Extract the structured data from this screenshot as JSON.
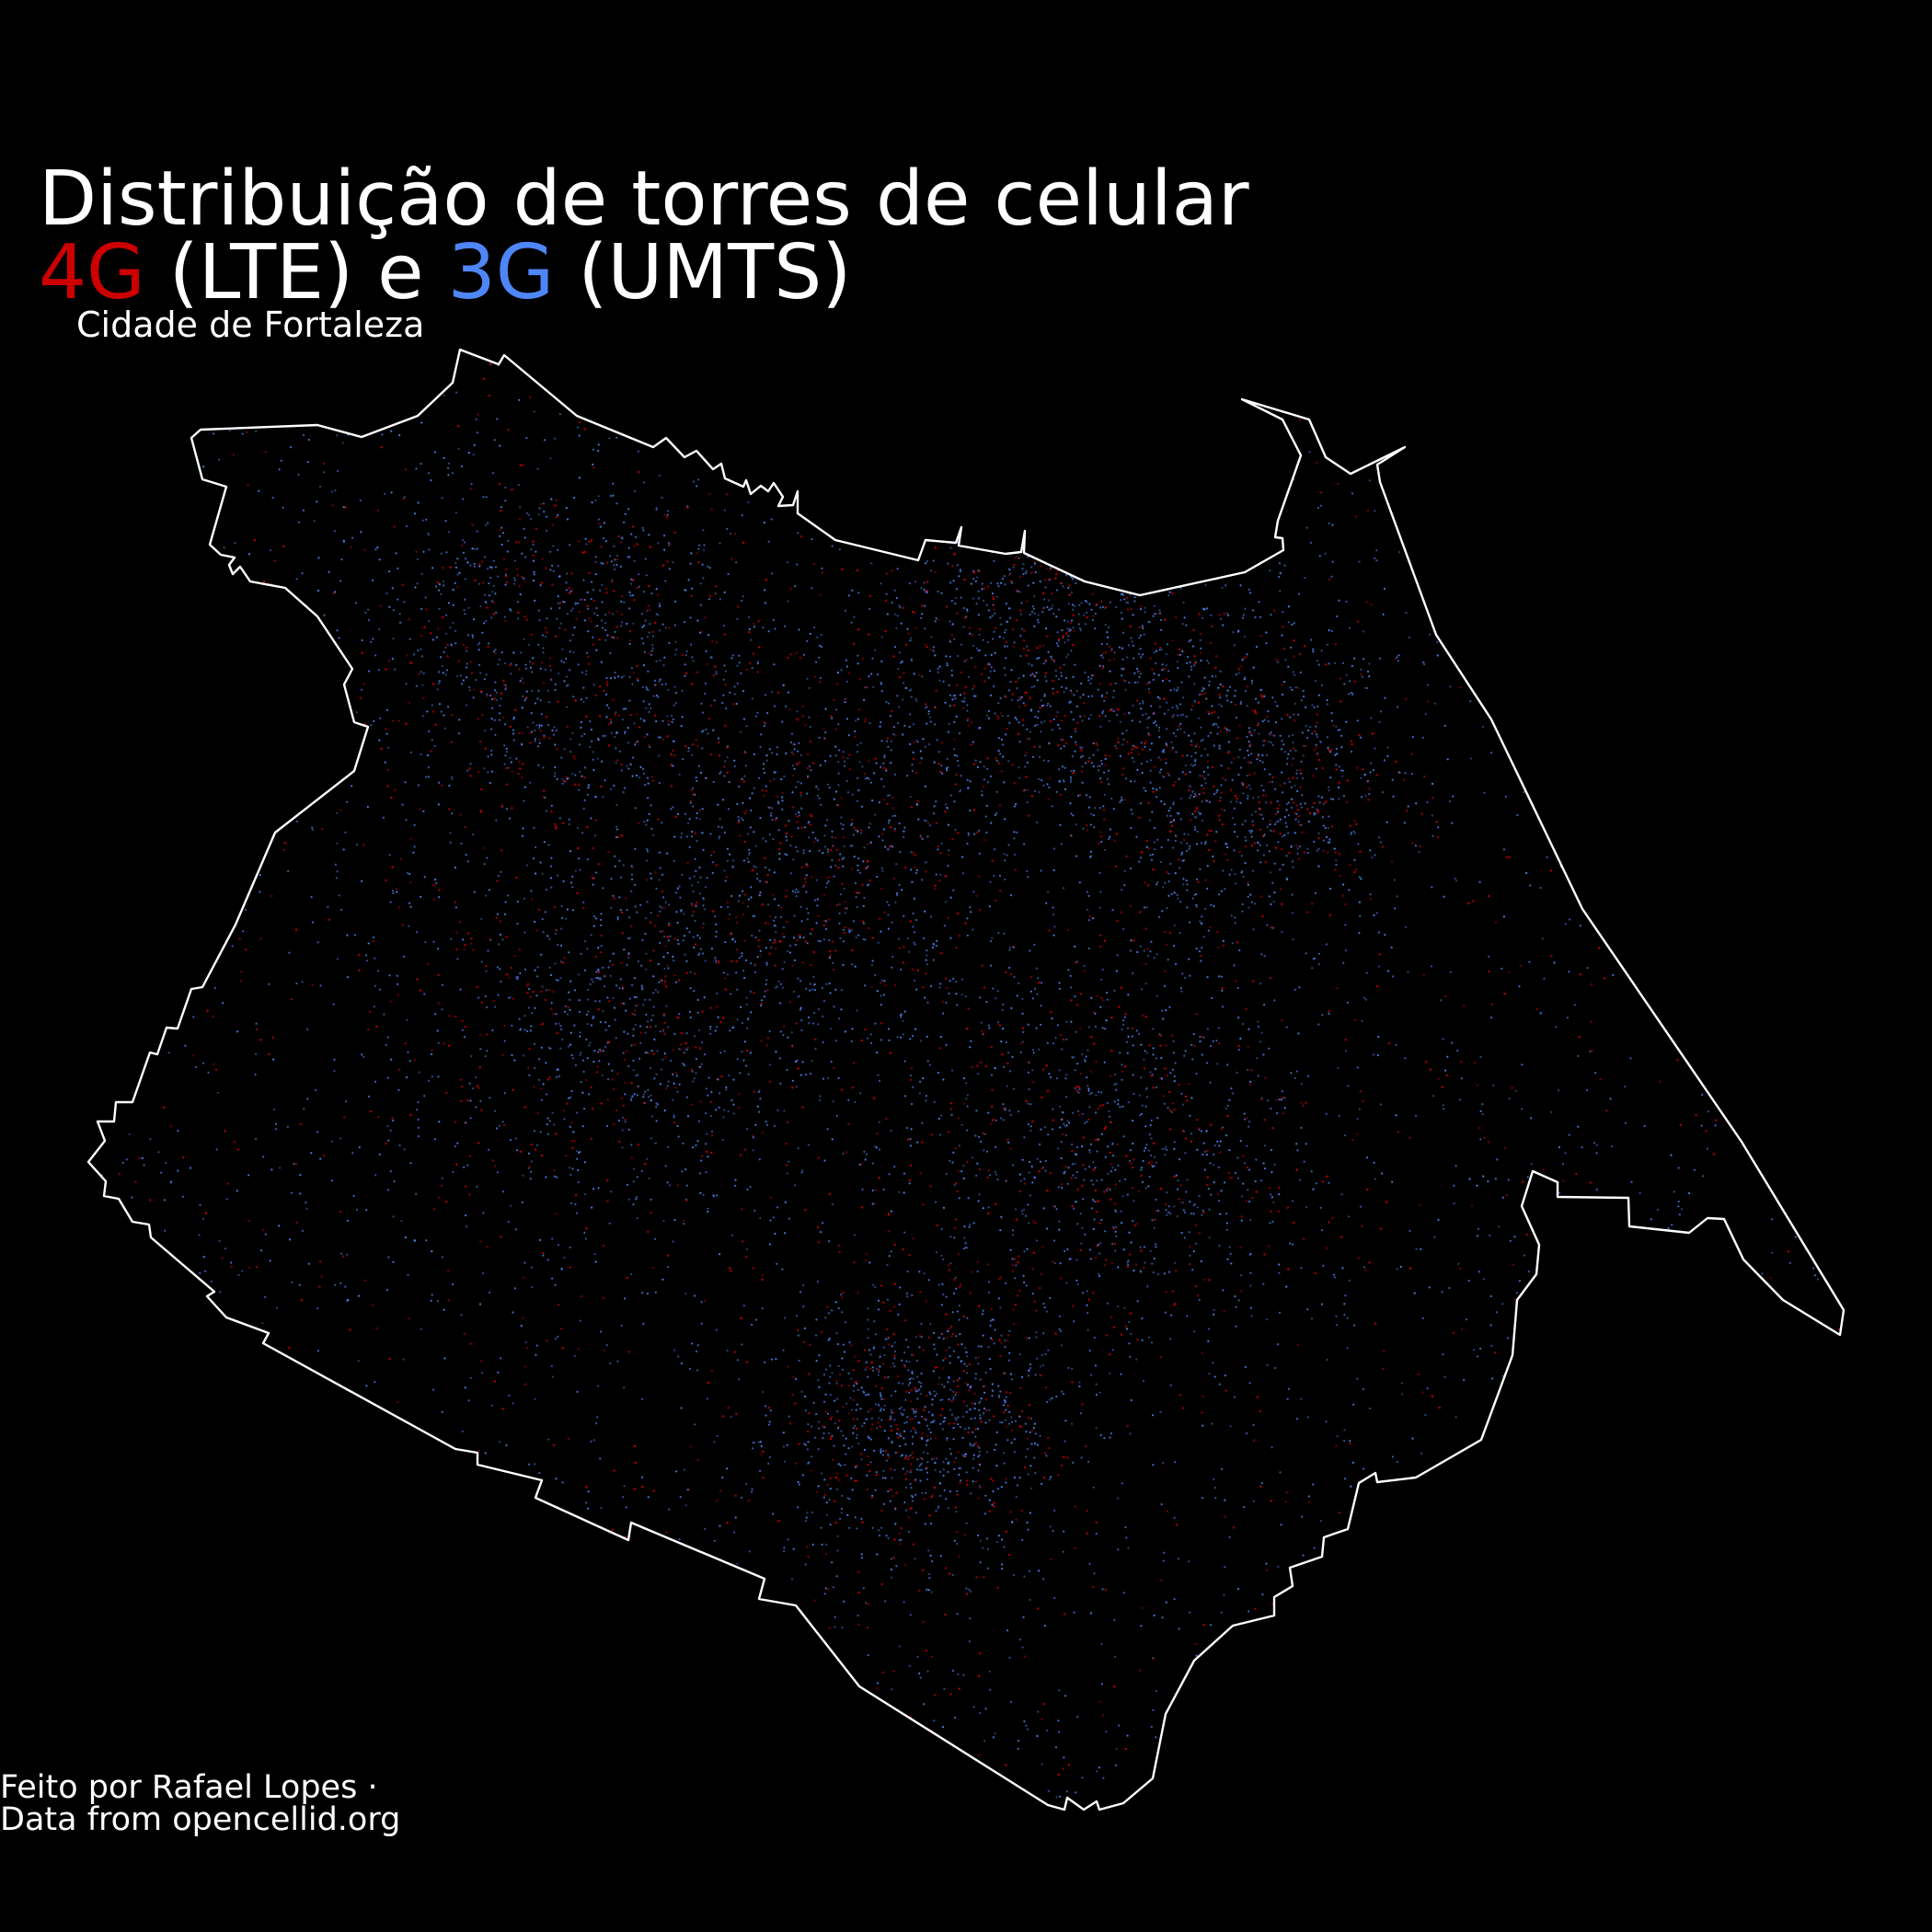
{
  "title": {
    "line1": "Distribuição de torres de celular",
    "line2": {
      "part_4g": "4G",
      "part_lte": " (LTE) e ",
      "part_3g": "3G",
      "part_umts": " (UMTS)"
    }
  },
  "subtitle": "Cidade de Fortaleza",
  "credits": {
    "line1": "Feito por Rafael Lopes ·",
    "line2": "Data from opencellid.org"
  },
  "colors": {
    "background": "#000000",
    "boundary": "#ffffff",
    "lte_4g": "#cc0000",
    "umts_3g": "#4f86f7"
  },
  "chart_data": {
    "type": "scatter",
    "series": [
      {
        "name": "4G",
        "color": "#cc0000"
      },
      {
        "name": "3G",
        "color": "#4f86f7"
      }
    ]
  }
}
